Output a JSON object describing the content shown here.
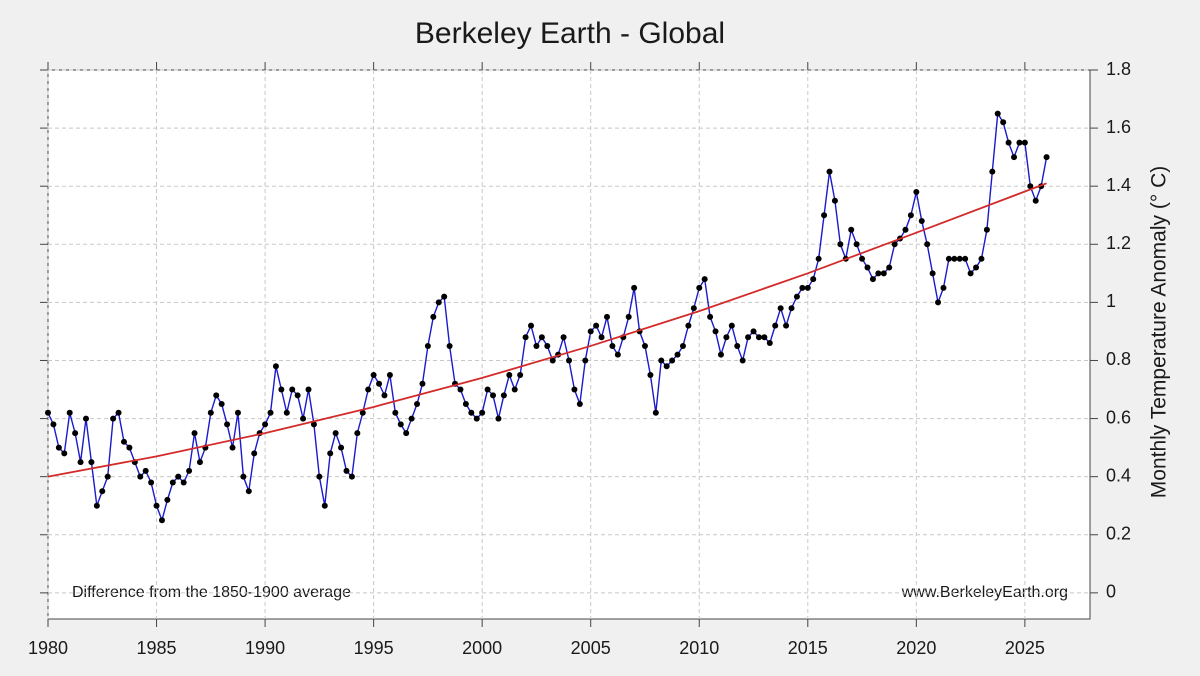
{
  "chart_data": {
    "type": "line",
    "title": "Berkeley Earth - Global",
    "y_label": "Monthly Temperature Anomaly (° C)",
    "annotations": [
      "Difference from the 1850-1900 average",
      "www.BerkeleyEarth.org"
    ],
    "xlim": [
      1980,
      2028
    ],
    "xticks": [
      1980,
      1985,
      1990,
      1995,
      2000,
      2005,
      2010,
      2015,
      2020,
      2025
    ],
    "ylim": [
      -0.09,
      1.8
    ],
    "yticks": [
      0,
      0.2,
      0.4,
      0.6,
      0.8,
      1,
      1.2,
      1.4,
      1.6,
      1.8
    ],
    "y_axis_side": "right",
    "grid": true,
    "series": [
      {
        "color": "#1a1acc",
        "marker_color": "#000000",
        "x": [
          1980,
          1980.25,
          1980.5,
          1980.75,
          1981,
          1981.25,
          1981.5,
          1981.75,
          1982,
          1982.25,
          1982.5,
          1982.75,
          1983,
          1983.25,
          1983.5,
          1983.75,
          1984,
          1984.25,
          1984.5,
          1984.75,
          1985,
          1985.25,
          1985.5,
          1985.75,
          1986,
          1986.25,
          1986.5,
          1986.75,
          1987,
          1987.25,
          1987.5,
          1987.75,
          1988,
          1988.25,
          1988.5,
          1988.75,
          1989,
          1989.25,
          1989.5,
          1989.75,
          1990,
          1990.25,
          1990.5,
          1990.75,
          1991,
          1991.25,
          1991.5,
          1991.75,
          1992,
          1992.25,
          1992.5,
          1992.75,
          1993,
          1993.25,
          1993.5,
          1993.75,
          1994,
          1994.25,
          1994.5,
          1994.75,
          1995,
          1995.25,
          1995.5,
          1995.75,
          1996,
          1996.25,
          1996.5,
          1996.75,
          1997,
          1997.25,
          1997.5,
          1997.75,
          1998,
          1998.25,
          1998.5,
          1998.75,
          1999,
          1999.25,
          1999.5,
          1999.75,
          2000,
          2000.25,
          2000.5,
          2000.75,
          2001,
          2001.25,
          2001.5,
          2001.75,
          2002,
          2002.25,
          2002.5,
          2002.75,
          2003,
          2003.25,
          2003.5,
          2003.75,
          2004,
          2004.25,
          2004.5,
          2004.75,
          2005,
          2005.25,
          2005.5,
          2005.75,
          2006,
          2006.25,
          2006.5,
          2006.75,
          2007,
          2007.25,
          2007.5,
          2007.75,
          2008,
          2008.25,
          2008.5,
          2008.75,
          2009,
          2009.25,
          2009.5,
          2009.75,
          2010,
          2010.25,
          2010.5,
          2010.75,
          2011,
          2011.25,
          2011.5,
          2011.75,
          2012,
          2012.25,
          2012.5,
          2012.75,
          2013,
          2013.25,
          2013.5,
          2013.75,
          2014,
          2014.25,
          2014.5,
          2014.75,
          2015,
          2015.25,
          2015.5,
          2015.75,
          2016,
          2016.25,
          2016.5,
          2016.75,
          2017,
          2017.25,
          2017.5,
          2017.75,
          2018,
          2018.25,
          2018.5,
          2018.75,
          2019,
          2019.25,
          2019.5,
          2019.75,
          2020,
          2020.25,
          2020.5,
          2020.75,
          2021,
          2021.25,
          2021.5,
          2021.75,
          2022,
          2022.25,
          2022.5,
          2022.75,
          2023,
          2023.25,
          2023.5,
          2023.75,
          2024,
          2024.25,
          2024.5,
          2024.75,
          2025,
          2025.25,
          2025.5,
          2025.75,
          2026
        ],
        "values": [
          0.62,
          0.58,
          0.5,
          0.48,
          0.62,
          0.55,
          0.45,
          0.6,
          0.45,
          0.3,
          0.35,
          0.4,
          0.6,
          0.62,
          0.52,
          0.5,
          0.45,
          0.4,
          0.42,
          0.38,
          0.3,
          0.25,
          0.32,
          0.38,
          0.4,
          0.38,
          0.42,
          0.55,
          0.45,
          0.5,
          0.62,
          0.68,
          0.65,
          0.58,
          0.5,
          0.62,
          0.4,
          0.35,
          0.48,
          0.55,
          0.58,
          0.62,
          0.78,
          0.7,
          0.62,
          0.7,
          0.68,
          0.6,
          0.7,
          0.58,
          0.4,
          0.3,
          0.48,
          0.55,
          0.5,
          0.42,
          0.4,
          0.55,
          0.62,
          0.7,
          0.75,
          0.72,
          0.68,
          0.75,
          0.62,
          0.58,
          0.55,
          0.6,
          0.65,
          0.72,
          0.85,
          0.95,
          1.0,
          1.02,
          0.85,
          0.72,
          0.7,
          0.65,
          0.62,
          0.6,
          0.62,
          0.7,
          0.68,
          0.6,
          0.68,
          0.75,
          0.7,
          0.75,
          0.88,
          0.92,
          0.85,
          0.88,
          0.85,
          0.8,
          0.82,
          0.88,
          0.8,
          0.7,
          0.65,
          0.8,
          0.9,
          0.92,
          0.88,
          0.95,
          0.85,
          0.82,
          0.88,
          0.95,
          1.05,
          0.9,
          0.85,
          0.75,
          0.62,
          0.8,
          0.78,
          0.8,
          0.82,
          0.85,
          0.92,
          0.98,
          1.05,
          1.08,
          0.95,
          0.9,
          0.82,
          0.88,
          0.92,
          0.85,
          0.8,
          0.88,
          0.9,
          0.88,
          0.88,
          0.86,
          0.92,
          0.98,
          0.92,
          0.98,
          1.02,
          1.05,
          1.05,
          1.08,
          1.15,
          1.3,
          1.45,
          1.35,
          1.2,
          1.15,
          1.25,
          1.2,
          1.15,
          1.12,
          1.08,
          1.1,
          1.1,
          1.12,
          1.2,
          1.22,
          1.25,
          1.3,
          1.38,
          1.28,
          1.2,
          1.1,
          1.0,
          1.05,
          1.15,
          1.15,
          1.15,
          1.15,
          1.1,
          1.12,
          1.15,
          1.25,
          1.45,
          1.65,
          1.62,
          1.55,
          1.5,
          1.55,
          1.55,
          1.4,
          1.35,
          1.4,
          1.5
        ]
      },
      {
        "color": "#d42a2a",
        "x": [
          1980,
          1985,
          1990,
          1995,
          2000,
          2005,
          2010,
          2015,
          2020,
          2026
        ],
        "values": [
          0.4,
          0.47,
          0.55,
          0.64,
          0.74,
          0.85,
          0.97,
          1.1,
          1.24,
          1.41
        ]
      }
    ]
  }
}
